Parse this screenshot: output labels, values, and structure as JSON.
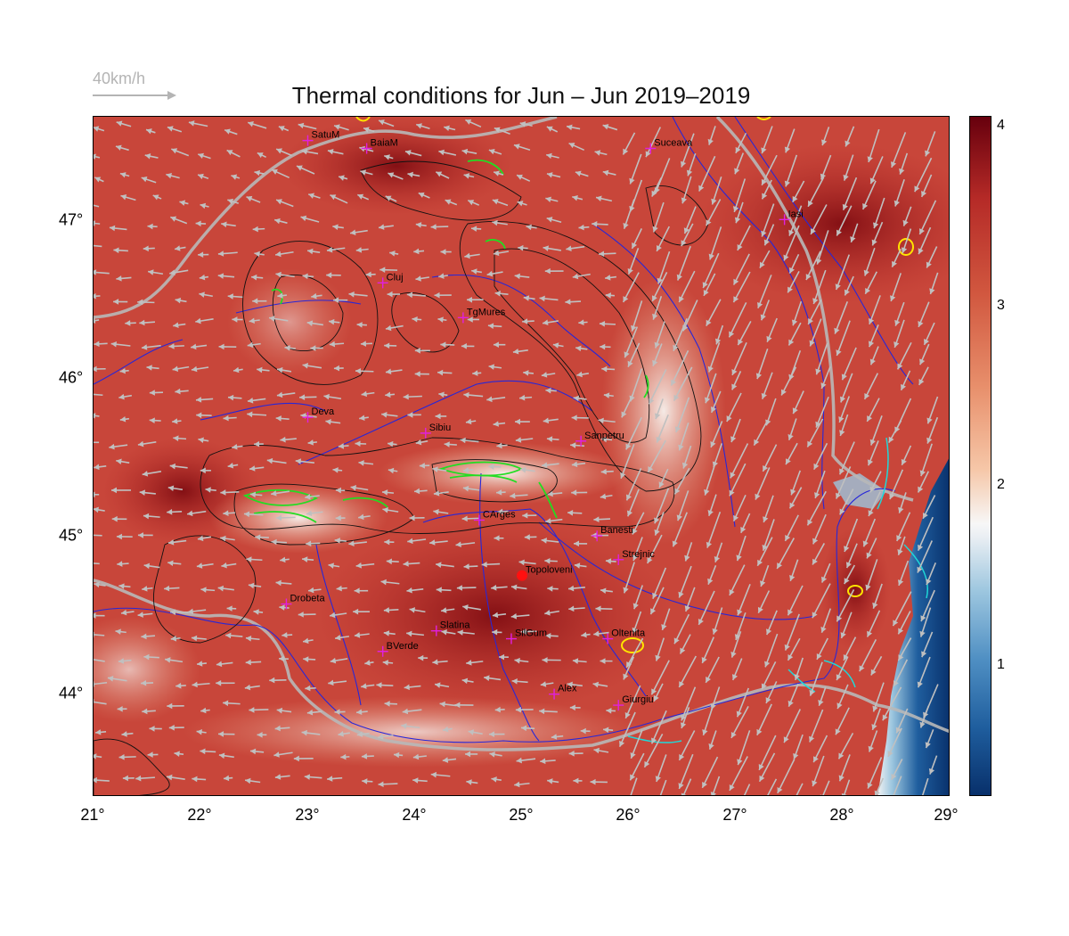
{
  "title": "Thermal conditions for Jun – Jun  2019–2019",
  "wind_legend": {
    "label": "40km/h"
  },
  "axes": {
    "x_ticks": [
      "21°",
      "22°",
      "23°",
      "24°",
      "25°",
      "26°",
      "27°",
      "28°",
      "29°"
    ],
    "y_ticks": [
      "47°",
      "46°",
      "45°",
      "44°"
    ]
  },
  "colorbar": {
    "ticks": [
      "4",
      "3",
      "2",
      "1"
    ],
    "range": [
      0.25,
      4.05
    ],
    "colors": [
      "#08306b",
      "#f7f7f7",
      "#67000d"
    ]
  },
  "cities": [
    {
      "name": "SatuM",
      "lon": 23.0,
      "lat": 47.45
    },
    {
      "name": "BaiaM",
      "lon": 23.55,
      "lat": 47.4
    },
    {
      "name": "Suceava",
      "lon": 26.2,
      "lat": 47.4
    },
    {
      "name": "Iasi",
      "lon": 27.45,
      "lat": 46.95
    },
    {
      "name": "Cluj",
      "lon": 23.7,
      "lat": 46.55
    },
    {
      "name": "TgMures",
      "lon": 24.45,
      "lat": 46.33
    },
    {
      "name": "Deva",
      "lon": 23.0,
      "lat": 45.7
    },
    {
      "name": "Sibiu",
      "lon": 24.1,
      "lat": 45.6
    },
    {
      "name": "Sanpetru",
      "lon": 25.55,
      "lat": 45.55
    },
    {
      "name": "CArges",
      "lon": 24.6,
      "lat": 45.05
    },
    {
      "name": "Banesti",
      "lon": 25.7,
      "lat": 44.95
    },
    {
      "name": "Strejnic",
      "lon": 25.9,
      "lat": 44.8
    },
    {
      "name": "Topoloveni",
      "lon": 25.0,
      "lat": 44.7,
      "highlight": true
    },
    {
      "name": "Drobeta",
      "lon": 22.8,
      "lat": 44.52
    },
    {
      "name": "Slatina",
      "lon": 24.2,
      "lat": 44.35
    },
    {
      "name": "SilGum",
      "lon": 24.9,
      "lat": 44.3
    },
    {
      "name": "Oltenita",
      "lon": 25.8,
      "lat": 44.3
    },
    {
      "name": "BVerde",
      "lon": 23.7,
      "lat": 44.22
    },
    {
      "name": "Alex",
      "lon": 25.3,
      "lat": 43.95
    },
    {
      "name": "Giurgiu",
      "lon": 25.9,
      "lat": 43.88
    }
  ]
}
